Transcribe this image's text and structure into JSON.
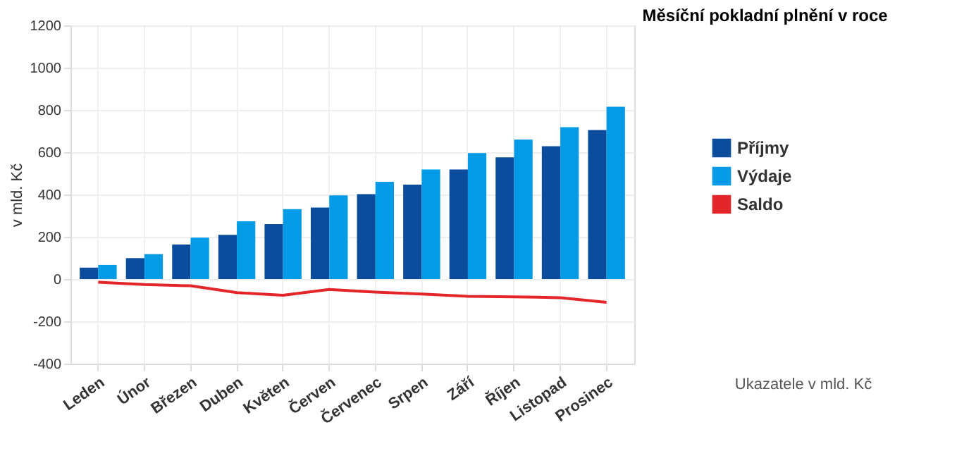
{
  "chart_data": {
    "type": "bar",
    "title": "Měsíční pokladní plnění v roce",
    "ylabel": "v mld. Kč",
    "categories": [
      "Leden",
      "Únor",
      "Březen",
      "Duben",
      "Květen",
      "Červen",
      "Červenec",
      "Srpen",
      "Září",
      "Říjen",
      "Listopad",
      "Prosinec"
    ],
    "series": [
      {
        "name": "Příjmy",
        "color": "#0b4c9c",
        "values": [
          54,
          99,
          163,
          209,
          260,
          338,
          402,
          447,
          518,
          576,
          628,
          705
        ]
      },
      {
        "name": "Výdaje",
        "color": "#039be5",
        "values": [
          67,
          118,
          196,
          273,
          331,
          396,
          460,
          518,
          596,
          660,
          718,
          815
        ]
      },
      {
        "name": "Saldo",
        "type": "line",
        "color": "#e3262a",
        "values": [
          -15,
          -26,
          -32,
          -64,
          -77,
          -49,
          -62,
          -71,
          -82,
          -84,
          -88,
          -110
        ]
      }
    ],
    "ylim": [
      -400,
      1200
    ],
    "yticks": [
      -400,
      -200,
      0,
      200,
      400,
      600,
      800,
      1000,
      1200
    ],
    "grid": true,
    "legend": "right",
    "annotations": [
      "Ukazatele v mld. Kč"
    ]
  }
}
